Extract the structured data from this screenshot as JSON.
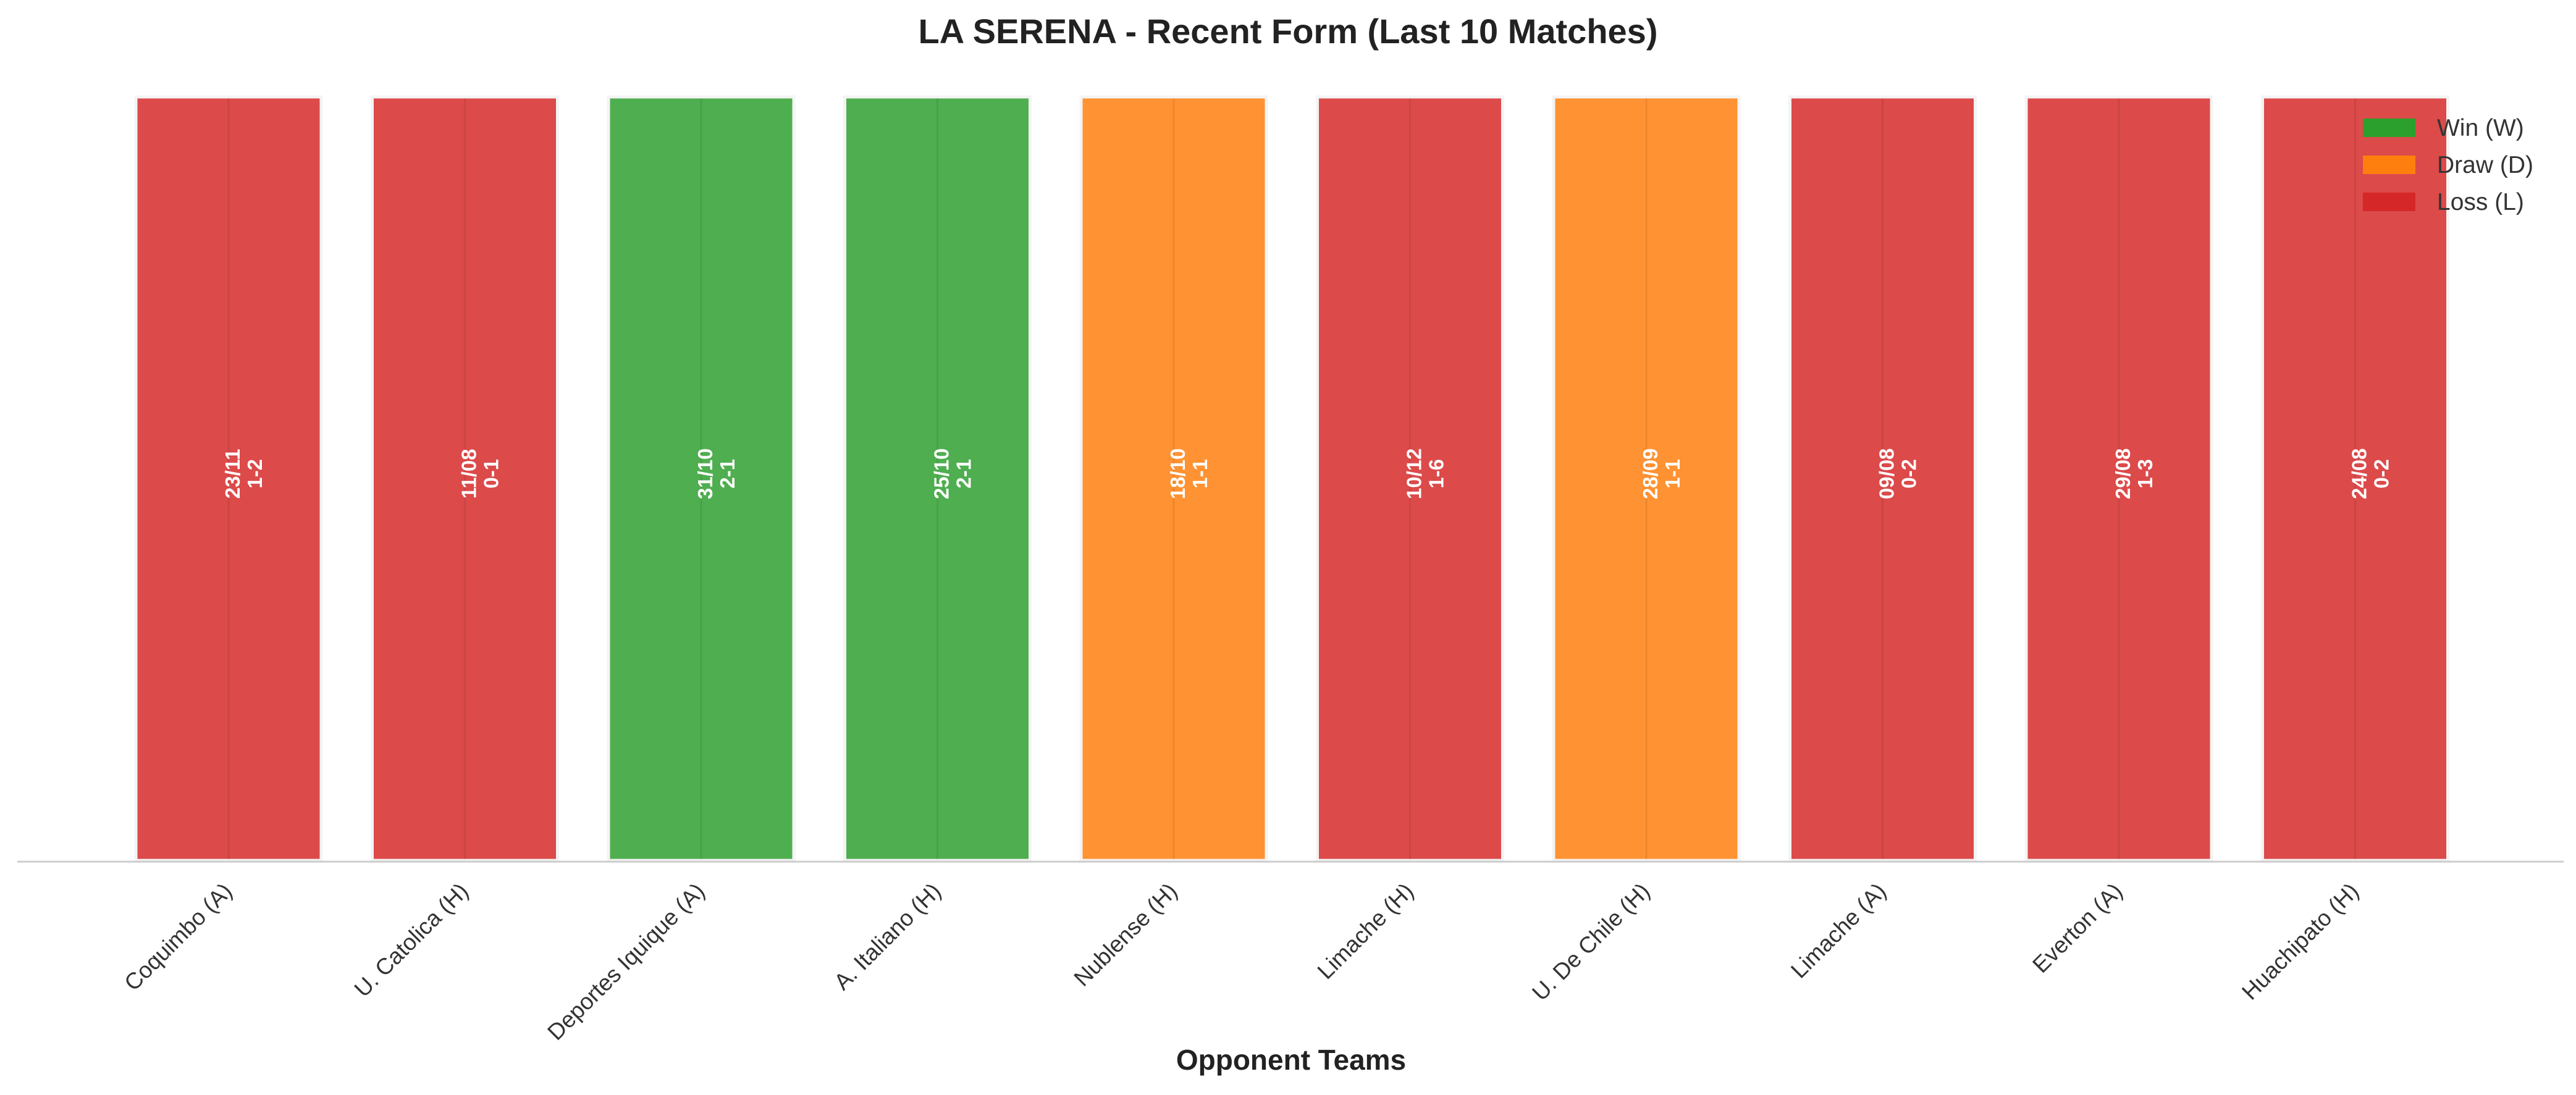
{
  "chart_data": {
    "type": "bar",
    "title": "LA SERENA - Recent Form (Last 10 Matches)",
    "xlabel": "Opponent Teams",
    "ylabel": "",
    "grid": false,
    "legend_position": "top-right",
    "categories": [
      "Coquimbo (A)",
      "U. Catolica (H)",
      "Deportes Iquique (A)",
      "A. Italiano (H)",
      "Nublense (H)",
      "Limache (H)",
      "U. De Chile (H)",
      "Limache (A)",
      "Everton (A)",
      "Huachipato (H)"
    ],
    "values": [
      1,
      1,
      1,
      1,
      1,
      1,
      1,
      1,
      1,
      1
    ],
    "results": [
      "L",
      "L",
      "W",
      "W",
      "D",
      "L",
      "D",
      "L",
      "L",
      "L"
    ],
    "dates": [
      "23/11",
      "11/08",
      "31/10",
      "25/10",
      "18/10",
      "10/12",
      "28/09",
      "09/08",
      "29/08",
      "24/08"
    ],
    "scores": [
      "1-2",
      "0-1",
      "2-1",
      "2-1",
      "1-1",
      "1-6",
      "1-1",
      "0-2",
      "1-3",
      "0-2"
    ],
    "legend": [
      {
        "key": "W",
        "label": "Win (W)",
        "color": "#2ca02c"
      },
      {
        "key": "D",
        "label": "Draw (D)",
        "color": "#ff7f0e"
      },
      {
        "key": "L",
        "label": "Loss (L)",
        "color": "#d62728"
      }
    ],
    "colors": {
      "W": "#4fae4f",
      "D": "#ff9232",
      "L": "#dc4a4a"
    }
  }
}
